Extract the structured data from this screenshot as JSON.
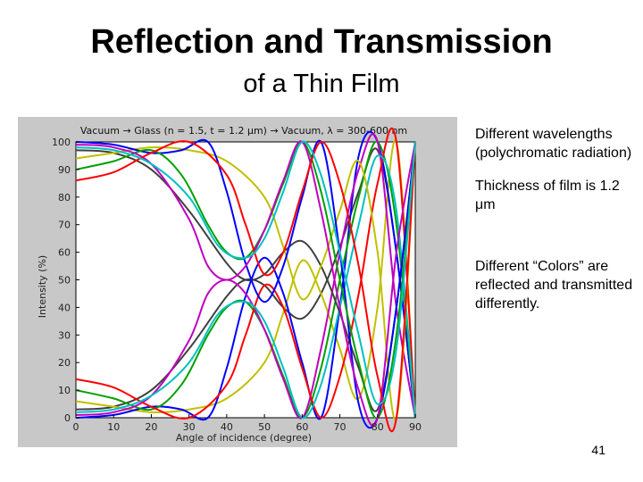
{
  "slide": {
    "title": "Reflection and Transmission",
    "subtitle": "of a Thin Film",
    "notes": [
      "Different wavelengths (polychromatic radiation)",
      "Thickness of film is 1.2 μm",
      "Different “Colors” are reflected and transmitted differently."
    ],
    "page_number": "41"
  },
  "chart_data": {
    "type": "line",
    "title": "Vacuum → Glass (n = 1.5, t = 1.2 μm) → Vacuum, λ = 300-600 nm",
    "xlabel": "Angle of incidence (degree)",
    "ylabel": "Intensity (%)",
    "xlim": [
      0,
      90
    ],
    "ylim": [
      0,
      100
    ],
    "xticks": [
      0,
      10,
      20,
      30,
      40,
      50,
      60,
      70,
      80,
      90
    ],
    "yticks": [
      0,
      10,
      20,
      30,
      40,
      50,
      60,
      70,
      80,
      90,
      100
    ],
    "grid": false,
    "legend": "none",
    "background": "#c8c8c8",
    "plot_background": "#ffffff",
    "colors": [
      "#0000ff",
      "#00a000",
      "#ff0000",
      "#00c0c0",
      "#c000c0",
      "#c0c000",
      "#404040"
    ],
    "series": [
      {
        "color": "#404040",
        "x": [
          0,
          10,
          20,
          30,
          40,
          45,
          50,
          55,
          60,
          65,
          70,
          75,
          80,
          85,
          90
        ],
        "y": [
          3,
          4,
          10,
          25,
          44,
          50,
          48,
          40,
          36,
          45,
          62,
          82,
          97,
          60,
          0
        ]
      },
      {
        "color": "#c0c000",
        "x": [
          0,
          10,
          20,
          30,
          40,
          50,
          55,
          60,
          65,
          70,
          75,
          80,
          85,
          90
        ],
        "y": [
          6,
          4,
          2,
          3,
          7,
          20,
          38,
          57,
          45,
          25,
          7,
          40,
          100,
          0
        ]
      },
      {
        "color": "#0000ff",
        "x": [
          0,
          10,
          20,
          28,
          35,
          40,
          45,
          50,
          55,
          60,
          65,
          70,
          75,
          80,
          85,
          90
        ],
        "y": [
          0,
          1,
          4,
          3,
          0,
          18,
          44,
          58,
          45,
          20,
          0,
          40,
          95,
          100,
          60,
          0
        ]
      },
      {
        "color": "#00a000",
        "x": [
          0,
          10,
          20,
          28,
          35,
          40,
          45,
          50,
          55,
          60,
          65,
          70,
          75,
          80,
          85,
          90
        ],
        "y": [
          10,
          7,
          3,
          12,
          30,
          40,
          42,
          32,
          15,
          0,
          18,
          50,
          80,
          100,
          70,
          0
        ]
      },
      {
        "color": "#c000c0",
        "x": [
          0,
          10,
          20,
          30,
          35,
          40,
          45,
          50,
          55,
          60,
          65,
          70,
          75,
          80,
          85,
          90
        ],
        "y": [
          1,
          2,
          8,
          28,
          45,
          50,
          45,
          32,
          14,
          0,
          25,
          60,
          90,
          100,
          40,
          0
        ]
      },
      {
        "color": "#ff0000",
        "x": [
          0,
          10,
          20,
          30,
          40,
          45,
          50,
          55,
          60,
          65,
          70,
          75,
          80,
          85,
          90
        ],
        "y": [
          14,
          11,
          4,
          0,
          12,
          30,
          48,
          40,
          18,
          0,
          15,
          45,
          85,
          100,
          0
        ]
      },
      {
        "color": "#00c0c0",
        "x": [
          0,
          10,
          20,
          30,
          38,
          45,
          50,
          55,
          60,
          65,
          70,
          75,
          80,
          85,
          90
        ],
        "y": [
          2,
          3,
          8,
          20,
          38,
          42,
          35,
          18,
          0,
          12,
          40,
          70,
          95,
          75,
          0
        ]
      },
      {
        "color": "#404040",
        "x": [
          0,
          10,
          20,
          30,
          40,
          45,
          50,
          55,
          60,
          65,
          70,
          75,
          80,
          85,
          90
        ],
        "y": [
          97,
          96,
          90,
          75,
          56,
          50,
          52,
          60,
          64,
          55,
          38,
          18,
          3,
          40,
          100
        ]
      },
      {
        "color": "#c0c000",
        "x": [
          0,
          10,
          20,
          30,
          40,
          50,
          55,
          60,
          65,
          70,
          75,
          80,
          85,
          90
        ],
        "y": [
          94,
          96,
          98,
          97,
          93,
          80,
          62,
          43,
          55,
          75,
          93,
          60,
          0,
          100
        ]
      },
      {
        "color": "#0000ff",
        "x": [
          0,
          10,
          20,
          28,
          35,
          40,
          45,
          50,
          55,
          60,
          65,
          70,
          75,
          80,
          85,
          90
        ],
        "y": [
          100,
          99,
          96,
          97,
          100,
          82,
          56,
          42,
          55,
          80,
          100,
          60,
          5,
          0,
          40,
          100
        ]
      },
      {
        "color": "#00a000",
        "x": [
          0,
          10,
          20,
          28,
          35,
          40,
          45,
          50,
          55,
          60,
          65,
          70,
          75,
          80,
          85,
          90
        ],
        "y": [
          90,
          93,
          97,
          88,
          70,
          60,
          58,
          68,
          85,
          100,
          82,
          50,
          20,
          0,
          30,
          100
        ]
      },
      {
        "color": "#c000c0",
        "x": [
          0,
          10,
          20,
          30,
          35,
          40,
          45,
          50,
          55,
          60,
          65,
          70,
          75,
          80,
          85,
          90
        ],
        "y": [
          99,
          98,
          92,
          72,
          55,
          50,
          55,
          68,
          86,
          100,
          75,
          40,
          10,
          0,
          60,
          100
        ]
      },
      {
        "color": "#ff0000",
        "x": [
          0,
          10,
          20,
          30,
          40,
          45,
          50,
          55,
          60,
          65,
          70,
          75,
          80,
          85,
          90
        ],
        "y": [
          86,
          89,
          96,
          100,
          88,
          70,
          52,
          60,
          82,
          100,
          85,
          55,
          15,
          0,
          100
        ]
      },
      {
        "color": "#00c0c0",
        "x": [
          0,
          10,
          20,
          30,
          38,
          45,
          50,
          55,
          60,
          65,
          70,
          75,
          80,
          85,
          90
        ],
        "y": [
          98,
          97,
          92,
          80,
          62,
          58,
          65,
          82,
          100,
          88,
          60,
          30,
          5,
          25,
          100
        ]
      }
    ]
  }
}
